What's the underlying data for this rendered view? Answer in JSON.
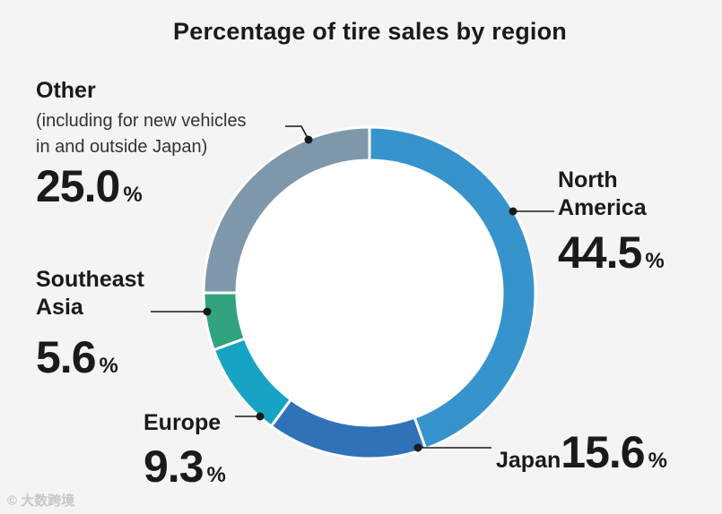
{
  "chart_data": {
    "type": "pie",
    "title": "Percentage of tire sales by region",
    "percent_sign": "%",
    "slices": [
      {
        "name": "North America",
        "name_lines": [
          "North",
          "America"
        ],
        "value": 44.5,
        "display": "44.5",
        "color": "#3793cc"
      },
      {
        "name": "Japan",
        "name_lines": [
          "Japan"
        ],
        "value": 15.6,
        "display": "15.6",
        "color": "#2f72b8"
      },
      {
        "name": "Europe",
        "name_lines": [
          "Europe"
        ],
        "value": 9.3,
        "display": "9.3",
        "color": "#17a3c4"
      },
      {
        "name": "Southeast Asia",
        "name_lines": [
          "Southeast",
          "Asia"
        ],
        "value": 5.6,
        "display": "5.6",
        "color": "#32a37f"
      },
      {
        "name": "Other",
        "name_lines": [
          "Other"
        ],
        "note_lines": [
          "(including for new vehicles",
          "in and outside Japan)"
        ],
        "value": 25.0,
        "display": "25.0",
        "color": "#7f97aa"
      }
    ]
  },
  "watermark": "© 大数跨境"
}
